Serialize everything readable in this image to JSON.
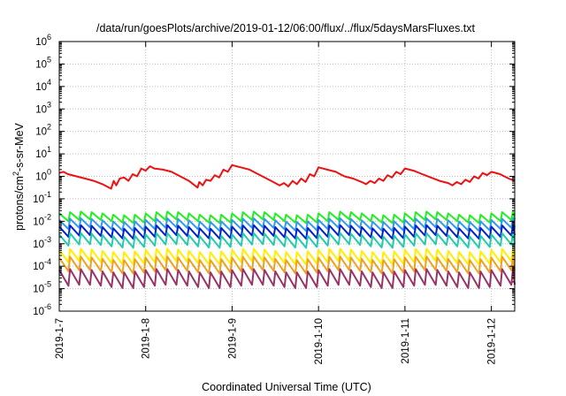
{
  "chart_data": {
    "type": "line",
    "title": "/data/run/goesPlots/archive/2019-01-12/06:00/flux/../flux/5daysMarsFluxes.txt",
    "xlabel": "Coordinated Universal Time (UTC)",
    "ylabel_main": "protons/cm",
    "ylabel_sup": "2",
    "ylabel_rest": "-s-sr-MeV",
    "y_scale": "log",
    "y_exponent_range": [
      -6,
      6
    ],
    "y_ticks": [
      {
        "base": "10",
        "exp": "-6"
      },
      {
        "base": "10",
        "exp": "-5"
      },
      {
        "base": "10",
        "exp": "-4"
      },
      {
        "base": "10",
        "exp": "-3"
      },
      {
        "base": "10",
        "exp": "-2"
      },
      {
        "base": "10",
        "exp": "-1"
      },
      {
        "base": "10",
        "exp": "0"
      },
      {
        "base": "10",
        "exp": "1"
      },
      {
        "base": "10",
        "exp": "2"
      },
      {
        "base": "10",
        "exp": "3"
      },
      {
        "base": "10",
        "exp": "4"
      },
      {
        "base": "10",
        "exp": "5"
      },
      {
        "base": "10",
        "exp": "6"
      }
    ],
    "x_range_days": [
      0,
      5.27
    ],
    "x_ticks": [
      "2019-1-7",
      "2019-1-8",
      "2019-1-9",
      "2019-1-10",
      "2019-1-11",
      "2019-1-12"
    ],
    "grid": true,
    "series": [
      {
        "color": "#ee1111",
        "log_points": [
          [
            0,
            0.15
          ],
          [
            0.05,
            0.2
          ],
          [
            0.1,
            0.1
          ],
          [
            0.2,
            0.0
          ],
          [
            0.3,
            -0.1
          ],
          [
            0.4,
            -0.2
          ],
          [
            0.5,
            -0.35
          ],
          [
            0.55,
            -0.45
          ],
          [
            0.6,
            -0.55
          ],
          [
            0.63,
            -0.2
          ],
          [
            0.66,
            -0.4
          ],
          [
            0.7,
            -0.1
          ],
          [
            0.75,
            -0.05
          ],
          [
            0.8,
            -0.2
          ],
          [
            0.85,
            0.1
          ],
          [
            0.9,
            0.0
          ],
          [
            0.95,
            0.35
          ],
          [
            1.0,
            0.25
          ],
          [
            1.05,
            0.45
          ],
          [
            1.1,
            0.35
          ],
          [
            1.2,
            0.3
          ],
          [
            1.3,
            0.2
          ],
          [
            1.4,
            0.0
          ],
          [
            1.5,
            -0.2
          ],
          [
            1.55,
            -0.35
          ],
          [
            1.6,
            -0.5
          ],
          [
            1.62,
            -0.25
          ],
          [
            1.66,
            -0.4
          ],
          [
            1.7,
            -0.15
          ],
          [
            1.75,
            -0.2
          ],
          [
            1.8,
            0.05
          ],
          [
            1.85,
            -0.05
          ],
          [
            1.9,
            0.3
          ],
          [
            1.95,
            0.2
          ],
          [
            2.0,
            0.5
          ],
          [
            2.1,
            0.4
          ],
          [
            2.2,
            0.3
          ],
          [
            2.3,
            0.1
          ],
          [
            2.4,
            -0.1
          ],
          [
            2.5,
            -0.3
          ],
          [
            2.55,
            -0.4
          ],
          [
            2.6,
            -0.3
          ],
          [
            2.65,
            -0.45
          ],
          [
            2.7,
            -0.2
          ],
          [
            2.75,
            -0.35
          ],
          [
            2.8,
            -0.1
          ],
          [
            2.85,
            -0.25
          ],
          [
            2.9,
            0.1
          ],
          [
            2.95,
            0.0
          ],
          [
            3.0,
            0.4
          ],
          [
            3.1,
            0.3
          ],
          [
            3.2,
            0.2
          ],
          [
            3.3,
            0.0
          ],
          [
            3.4,
            -0.1
          ],
          [
            3.5,
            -0.25
          ],
          [
            3.55,
            -0.35
          ],
          [
            3.6,
            -0.2
          ],
          [
            3.65,
            -0.3
          ],
          [
            3.7,
            -0.1
          ],
          [
            3.75,
            -0.2
          ],
          [
            3.8,
            0.05
          ],
          [
            3.85,
            -0.05
          ],
          [
            3.9,
            0.2
          ],
          [
            3.95,
            0.1
          ],
          [
            4.0,
            0.35
          ],
          [
            4.1,
            0.25
          ],
          [
            4.2,
            0.1
          ],
          [
            4.3,
            -0.05
          ],
          [
            4.4,
            -0.2
          ],
          [
            4.5,
            -0.3
          ],
          [
            4.55,
            -0.4
          ],
          [
            4.6,
            -0.25
          ],
          [
            4.65,
            -0.35
          ],
          [
            4.7,
            -0.15
          ],
          [
            4.75,
            -0.25
          ],
          [
            4.8,
            0.0
          ],
          [
            4.85,
            -0.1
          ],
          [
            4.9,
            0.15
          ],
          [
            4.95,
            0.05
          ],
          [
            5.0,
            0.2
          ],
          [
            5.1,
            0.1
          ],
          [
            5.2,
            -0.1
          ],
          [
            5.27,
            -0.2
          ]
        ]
      },
      {
        "color": "#22ee22",
        "base": -1.65,
        "amp": 0.35,
        "offset": 0.0
      },
      {
        "color": "#3399ee",
        "base": -1.95,
        "amp": 0.4,
        "offset": 0.01
      },
      {
        "color": "#0022cc",
        "base": -2.25,
        "amp": 0.45,
        "offset": 0.02
      },
      {
        "color": "#22ccaa",
        "base": -2.6,
        "amp": 0.5,
        "offset": 0.03
      },
      {
        "color": "#ffee00",
        "base": -3.3,
        "amp": 0.55,
        "offset": 0.04
      },
      {
        "color": "#f0a020",
        "base": -3.65,
        "amp": 0.6,
        "offset": 0.05
      },
      {
        "color": "#993366",
        "base": -4.2,
        "amp": 0.7,
        "offset": 0.06
      }
    ],
    "sawtooth_period_days": 0.125
  }
}
